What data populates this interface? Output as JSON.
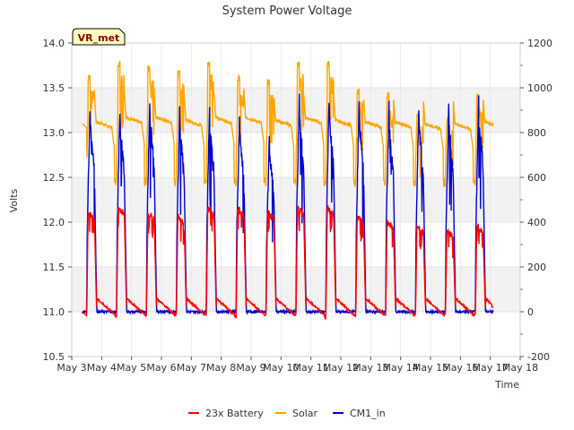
{
  "chart_data": {
    "type": "line",
    "title": "System Power Voltage",
    "xlabel": "Time",
    "ylabel_left": "Volts",
    "site_badge": "VR_met",
    "x_range": [
      "2024-05-03",
      "2024-05-18"
    ],
    "x_ticks": [
      "May 3",
      "May 4",
      "May 5",
      "May 6",
      "May 7",
      "May 8",
      "May 9",
      "May 10",
      "May 11",
      "May 12",
      "May 13",
      "May 14",
      "May 15",
      "May 16",
      "May 17",
      "May 18"
    ],
    "y_left": {
      "range": [
        10.5,
        14.0
      ],
      "ticks": [
        "10.5",
        "11.0",
        "11.5",
        "12.0",
        "12.5",
        "13.0",
        "13.5",
        "14.0"
      ]
    },
    "y_right": {
      "range": [
        -200,
        1200
      ],
      "ticks": [
        "-200",
        "0",
        "200",
        "400",
        "600",
        "800",
        "1000",
        "1200"
      ]
    },
    "background_bands": "alternating grey/white by 0.5 V",
    "legend": {
      "placement": "bottom-center"
    },
    "colors": {
      "battery": "#ff0000",
      "solar": "#ffa500",
      "cm1": "#0000cc",
      "band": "#f2f2f2",
      "badge_bg": "#ffffc0",
      "badge_text": "#8b0000"
    },
    "series": [
      {
        "name": "23x Battery",
        "axis": "left",
        "day_start": 3.5,
        "day_peak_v": [
          12.15,
          12.2,
          12.15,
          12.1,
          12.2,
          12.2,
          12.15,
          12.2,
          12.2,
          12.1,
          12.05,
          12.0,
          11.95,
          12.0
        ],
        "night_low_v": [
          10.95,
          10.97,
          10.97,
          10.97,
          10.93,
          10.97,
          10.97,
          10.92,
          10.95,
          10.97,
          10.98,
          10.98,
          10.98,
          10.98
        ],
        "x_end": 17.1,
        "end_value": 11.05
      },
      {
        "name": "Solar",
        "axis": "left",
        "day_start": 3.5,
        "day_peak_v": [
          13.65,
          13.8,
          13.75,
          13.7,
          13.8,
          13.65,
          13.6,
          13.8,
          13.8,
          13.5,
          13.45,
          13.25,
          13.2,
          13.45
        ],
        "night_base_v": [
          13.1,
          13.15,
          13.15,
          13.12,
          13.15,
          13.15,
          13.12,
          13.15,
          13.12,
          13.1,
          13.1,
          13.08,
          13.08,
          13.1
        ],
        "dip_v": 12.4,
        "x_start": 3.35,
        "x_end": 17.1
      },
      {
        "name": "CM1_in",
        "axis": "right",
        "day_start": 3.5,
        "day_peak": [
          1000,
          1000,
          1050,
          1000,
          1000,
          960,
          860,
          1050,
          1050,
          1030,
          1000,
          1010,
          1010,
          1050
        ],
        "night_base": 0,
        "x_start": 3.35,
        "x_end": 17.1
      }
    ]
  }
}
